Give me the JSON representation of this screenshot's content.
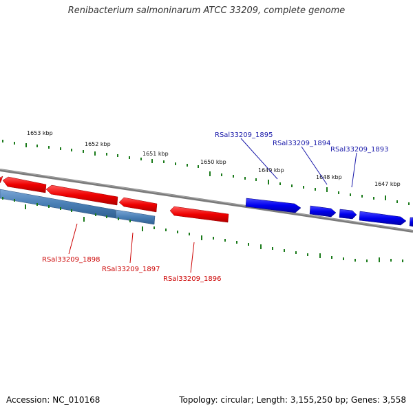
{
  "title": "Renibacterium salmoninarum ATCC 33209, complete genome",
  "footer": {
    "accession": "Accession: NC_010168",
    "summary": "Topology: circular; Length: 3,155,250 bp; Genes: 3,558"
  },
  "colors": {
    "forward_gene": "#0000ee",
    "reverse_gene": "#ee0000",
    "cds_track": "#4a7fb5",
    "backbone": "#808080",
    "ticks": "#1a7a1a",
    "forward_label": "#1a1aaa",
    "reverse_label": "#cc0000"
  },
  "ticks": {
    "inner": [
      "1653 kbp",
      "1652 kbp",
      "1651 kbp",
      "1650 kbp",
      "1649 kbp",
      "1648 kbp",
      "1647 kbp"
    ]
  },
  "genes": {
    "forward": [
      "RSal33209_1895",
      "RSal33209_1894",
      "RSal33209_1893"
    ],
    "reverse": [
      "RSal33209_1898",
      "RSal33209_1897",
      "RSal33209_1896"
    ]
  }
}
